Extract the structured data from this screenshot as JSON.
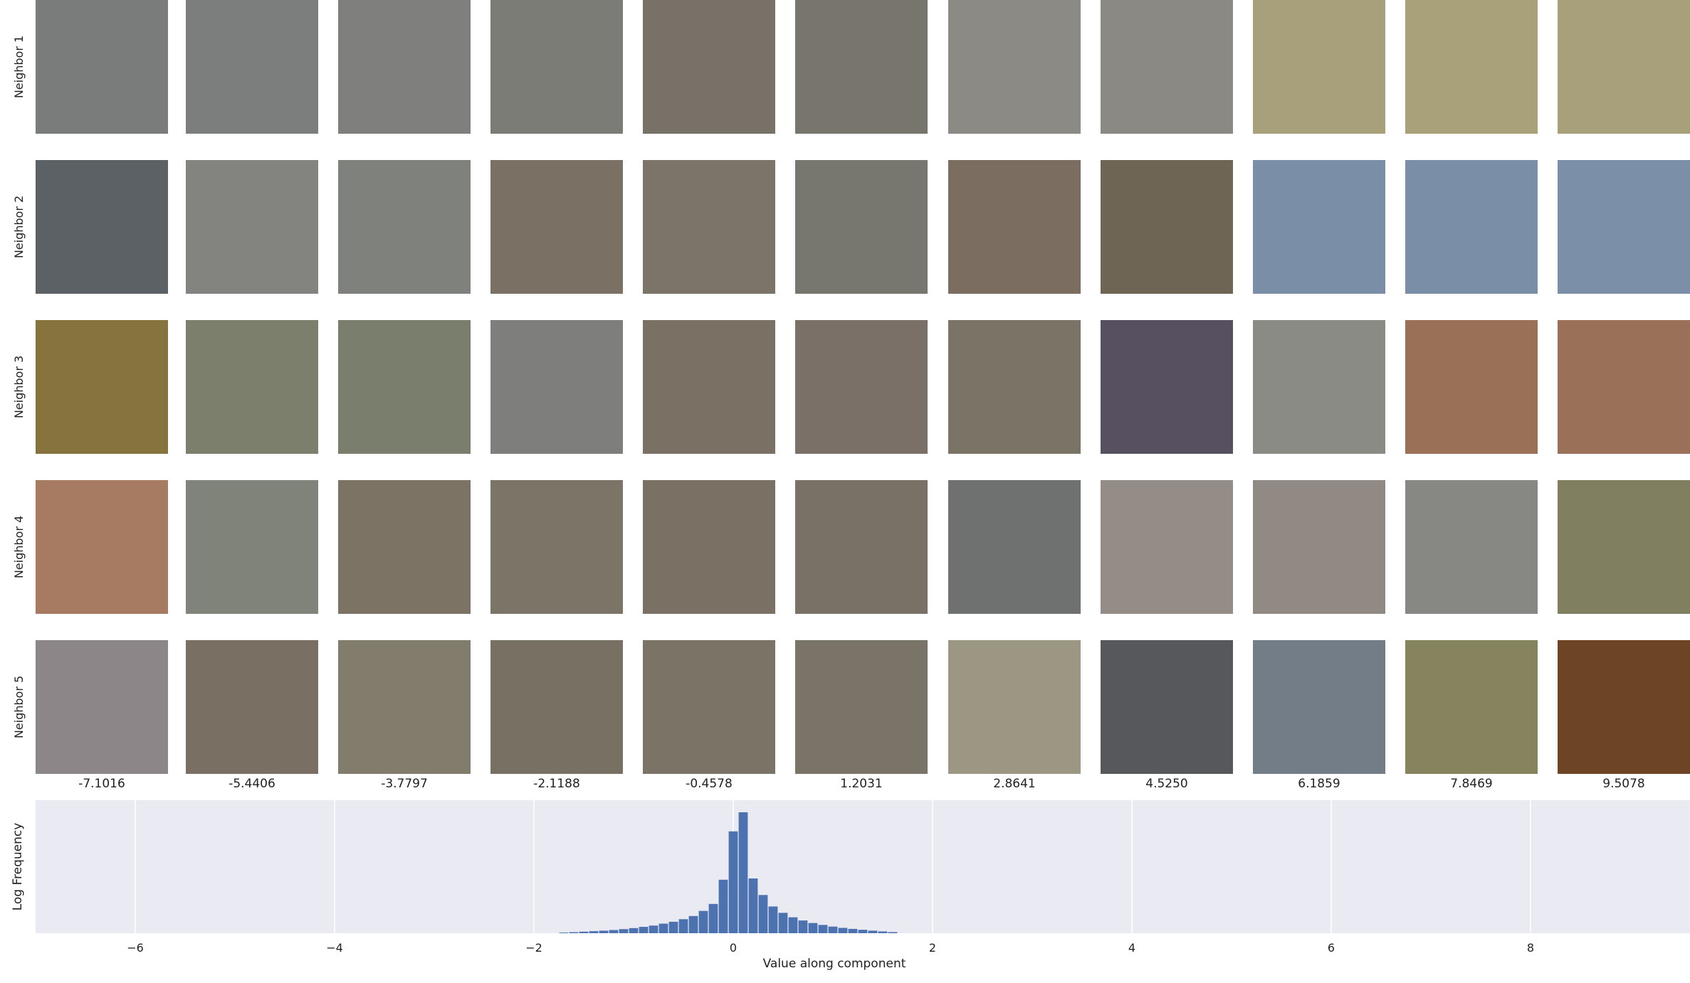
{
  "patch_grid": {
    "row_labels": [
      "Neighbor 1",
      "Neighbor 2",
      "Neighbor 3",
      "Neighbor 4",
      "Neighbor 5"
    ],
    "column_values": [
      "-7.1016",
      "-5.4406",
      "-3.7797",
      "-2.1188",
      "-0.4578",
      "1.2031",
      "2.8641",
      "4.5250",
      "6.1859",
      "7.8469",
      "9.5078"
    ],
    "patch_colors": [
      [
        "#7a7c7b",
        "#7c7e7d",
        "#7f807d",
        "#7b7c75",
        "#787168",
        "#78766c",
        "#8b8a84",
        "#8a8983",
        "#a8a07a",
        "#a9a17a",
        "#a8a07a"
      ],
      [
        "#5c6166",
        "#83847f",
        "#7f817c",
        "#7a7164",
        "#7c7369",
        "#77776f",
        "#7b6d60",
        "#6e6555",
        "#7b8ea8",
        "#7a8ea8",
        "#7b8fa8"
      ],
      [
        "#86733d",
        "#7b7f6c",
        "#7a7e6c",
        "#7e7f7c",
        "#7a7064",
        "#7a7067",
        "#7a7466",
        "#565061",
        "#8a8b85",
        "#9a7157",
        "#9a7158"
      ],
      [
        "#a77a62",
        "#80837a",
        "#7d7364",
        "#7c7466",
        "#7a7064",
        "#7a7166",
        "#6f7171",
        "#948c86",
        "#918983",
        "#878884",
        "#807f5f"
      ],
      [
        "#8c8689",
        "#7a6f63",
        "#827c6c",
        "#787062",
        "#7b7466",
        "#7a7367",
        "#9c9782",
        "#56585c",
        "#727d88",
        "#86845f",
        "#6d4525"
      ]
    ]
  },
  "chart_data": {
    "type": "bar",
    "title": "",
    "xlabel": "Value along component",
    "ylabel": "Log Frequency",
    "xlim": [
      -7.0,
      9.6
    ],
    "ylim": [
      0,
      1.0
    ],
    "xticks": [
      -6,
      -4,
      -2,
      0,
      2,
      4,
      6,
      8
    ],
    "xtick_labels": [
      "−6",
      "−4",
      "−2",
      "0",
      "2",
      "4",
      "6",
      "8"
    ],
    "grid": true,
    "bar_color": "#4c72b0",
    "background_color": "#eaeaf2",
    "bin_width": 0.1,
    "x": [
      -1.7,
      -1.6,
      -1.5,
      -1.4,
      -1.3,
      -1.2,
      -1.1,
      -1.0,
      -0.9,
      -0.8,
      -0.7,
      -0.6,
      -0.5,
      -0.4,
      -0.3,
      -0.2,
      -0.1,
      0.0,
      0.1,
      0.2,
      0.3,
      0.4,
      0.5,
      0.6,
      0.7,
      0.8,
      0.9,
      1.0,
      1.1,
      1.2,
      1.3,
      1.4,
      1.5,
      1.6
    ],
    "values": [
      0.005,
      0.008,
      0.012,
      0.016,
      0.02,
      0.025,
      0.032,
      0.04,
      0.05,
      0.06,
      0.075,
      0.09,
      0.11,
      0.135,
      0.175,
      0.23,
      0.42,
      0.8,
      0.95,
      0.43,
      0.3,
      0.21,
      0.16,
      0.125,
      0.1,
      0.08,
      0.065,
      0.052,
      0.042,
      0.034,
      0.027,
      0.02,
      0.014,
      0.009
    ]
  }
}
